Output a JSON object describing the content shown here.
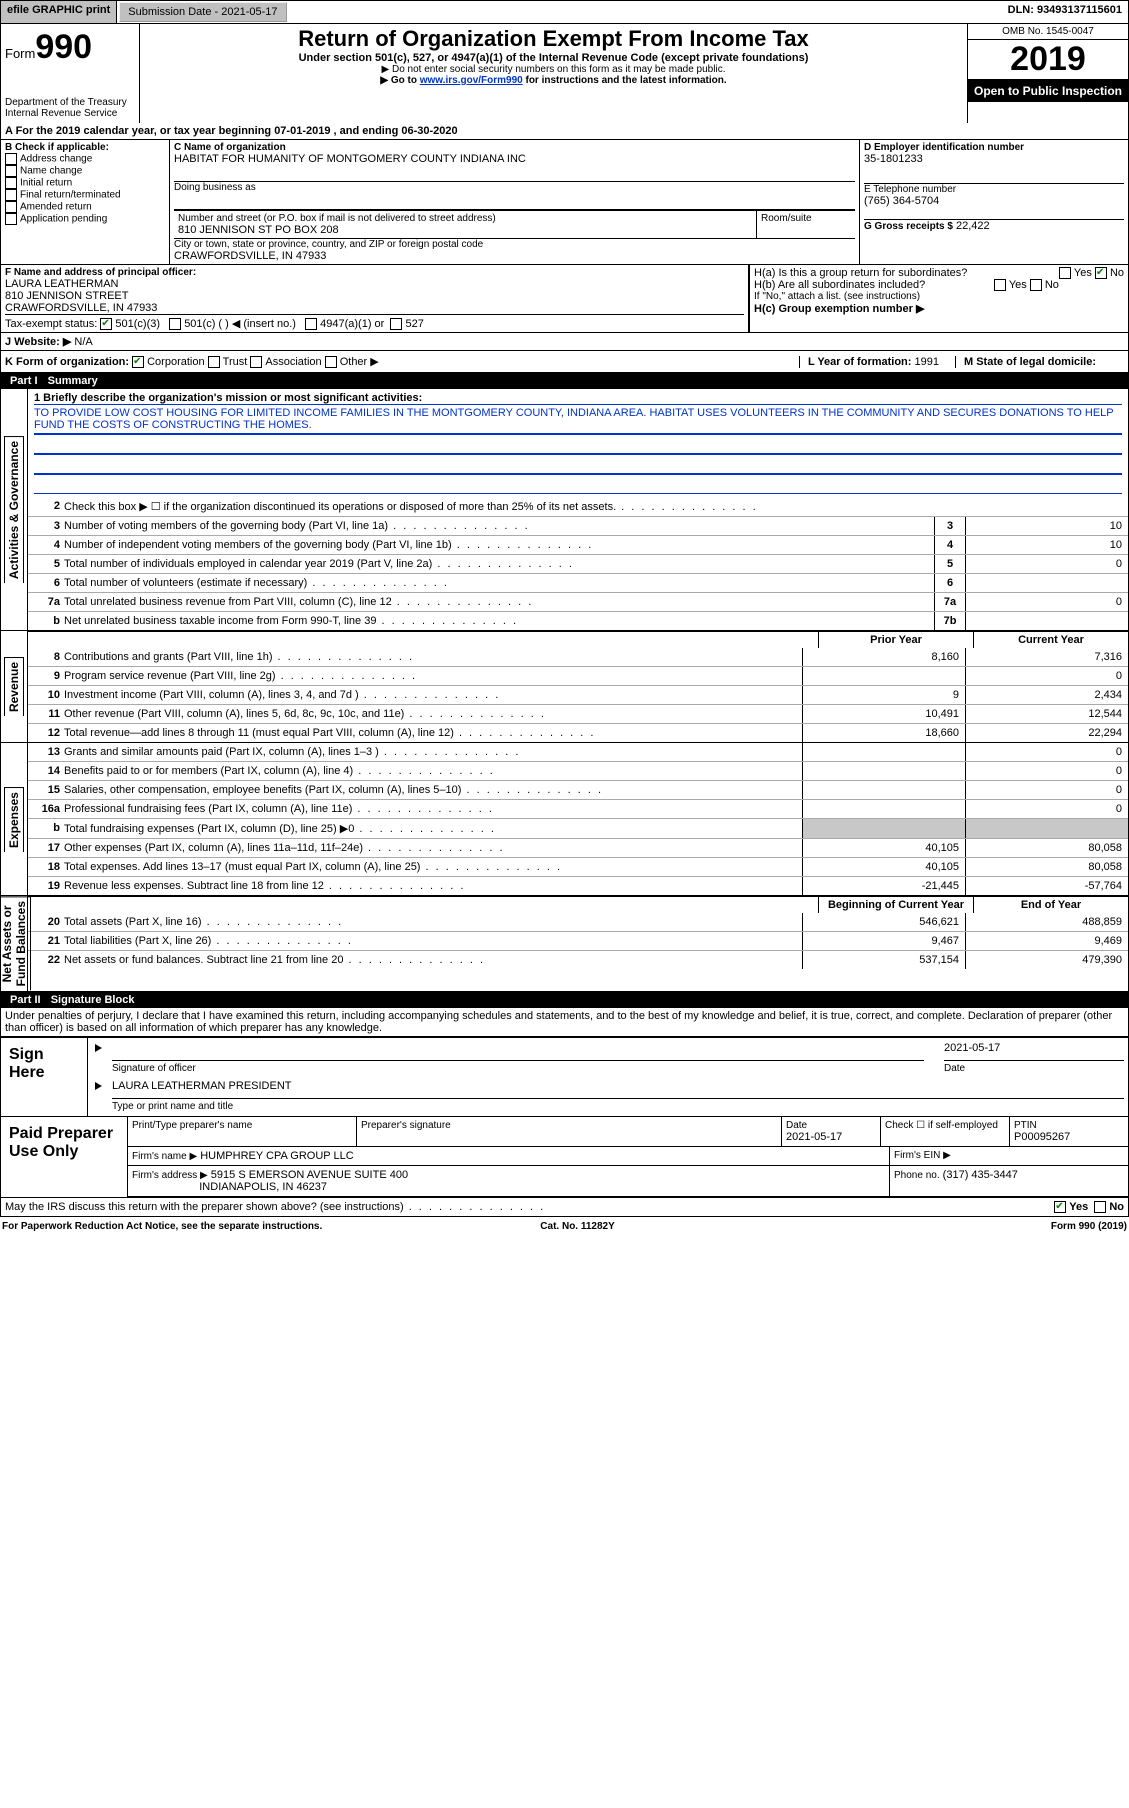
{
  "topbar": {
    "efile": "efile GRAPHIC print",
    "submission": "Submission Date - 2021-05-17",
    "dln": "DLN: 93493137115601"
  },
  "header": {
    "form_prefix": "Form",
    "form_no": "990",
    "dept": "Department of the Treasury\nInternal Revenue Service",
    "title": "Return of Organization Exempt From Income Tax",
    "sub1": "Under section 501(c), 527, or 4947(a)(1) of the Internal Revenue Code (except private foundations)",
    "sub2": "▶ Do not enter social security numbers on this form as it may be made public.",
    "sub3a": "▶ Go to ",
    "sub3link": "www.irs.gov/Form990",
    "sub3b": " for instructions and the latest information.",
    "omb": "OMB No. 1545-0047",
    "year": "2019",
    "open": "Open to Public Inspection"
  },
  "A": {
    "text": "A For the 2019 calendar year, or tax year beginning 07-01-2019    , and ending 06-30-2020"
  },
  "B": {
    "label": "B Check if applicable:",
    "items": [
      "Address change",
      "Name change",
      "Initial return",
      "Final return/terminated",
      "Amended return",
      "Application pending"
    ]
  },
  "C": {
    "label": "C Name of organization",
    "name": "HABITAT FOR HUMANITY OF MONTGOMERY COUNTY INDIANA INC",
    "dba_label": "Doing business as",
    "addr_label": "Number and street (or P.O. box if mail is not delivered to street address)",
    "room_label": "Room/suite",
    "addr": "810 JENNISON ST PO BOX 208",
    "city_label": "City or town, state or province, country, and ZIP or foreign postal code",
    "city": "CRAWFORDSVILLE, IN  47933"
  },
  "D": {
    "label": "D Employer identification number",
    "val": "35-1801233"
  },
  "E": {
    "label": "E Telephone number",
    "val": "(765) 364-5704"
  },
  "G": {
    "label": "G Gross receipts $",
    "val": "22,422"
  },
  "F": {
    "label": "F  Name and address of principal officer:",
    "name": "LAURA LEATHERMAN",
    "addr": "810 JENNISON STREET",
    "city": "CRAWFORDSVILLE, IN  47933"
  },
  "H": {
    "a": "H(a)  Is this a group return for subordinates?",
    "b": "H(b)  Are all subordinates included?",
    "bnote": "If \"No,\" attach a list. (see instructions)",
    "c": "H(c)  Group exemption number ▶",
    "yes": "Yes",
    "no": "No"
  },
  "I": {
    "label": "Tax-exempt status:",
    "opts": [
      "501(c)(3)",
      "501(c) (  ) ◀ (insert no.)",
      "4947(a)(1) or",
      "527"
    ]
  },
  "J": {
    "label": "J   Website: ▶",
    "val": "N/A"
  },
  "K": {
    "label": "K Form of organization:",
    "opts": [
      "Corporation",
      "Trust",
      "Association",
      "Other ▶"
    ]
  },
  "L": {
    "label": "L Year of formation:",
    "val": "1991"
  },
  "M": {
    "label": "M State of legal domicile:"
  },
  "part1": {
    "label": "Part I",
    "title": "Summary"
  },
  "mission": {
    "q": "1  Briefly describe the organization's mission or most significant activities:",
    "text": "TO PROVIDE LOW COST HOUSING FOR LIMITED INCOME FAMILIES IN THE MONTGOMERY COUNTY, INDIANA AREA. HABITAT USES VOLUNTEERS IN THE COMMUNITY AND SECURES DONATIONS TO HELP FUND THE COSTS OF CONSTRUCTING THE HOMES."
  },
  "gov_lines": [
    {
      "n": "2",
      "d": "Check this box ▶ ☐  if the organization discontinued its operations or disposed of more than 25% of its net assets.",
      "box": "",
      "v": ""
    },
    {
      "n": "3",
      "d": "Number of voting members of the governing body (Part VI, line 1a)",
      "box": "3",
      "v": "10"
    },
    {
      "n": "4",
      "d": "Number of independent voting members of the governing body (Part VI, line 1b)",
      "box": "4",
      "v": "10"
    },
    {
      "n": "5",
      "d": "Total number of individuals employed in calendar year 2019 (Part V, line 2a)",
      "box": "5",
      "v": "0"
    },
    {
      "n": "6",
      "d": "Total number of volunteers (estimate if necessary)",
      "box": "6",
      "v": ""
    },
    {
      "n": "7a",
      "d": "Total unrelated business revenue from Part VIII, column (C), line 12",
      "box": "7a",
      "v": "0"
    },
    {
      "n": "b",
      "d": "Net unrelated business taxable income from Form 990-T, line 39",
      "box": "7b",
      "v": ""
    }
  ],
  "two_header": {
    "py": "Prior Year",
    "cy": "Current Year"
  },
  "rev_lines": [
    {
      "n": "8",
      "d": "Contributions and grants (Part VIII, line 1h)",
      "py": "8,160",
      "cy": "7,316"
    },
    {
      "n": "9",
      "d": "Program service revenue (Part VIII, line 2g)",
      "py": "",
      "cy": "0"
    },
    {
      "n": "10",
      "d": "Investment income (Part VIII, column (A), lines 3, 4, and 7d )",
      "py": "9",
      "cy": "2,434"
    },
    {
      "n": "11",
      "d": "Other revenue (Part VIII, column (A), lines 5, 6d, 8c, 9c, 10c, and 11e)",
      "py": "10,491",
      "cy": "12,544"
    },
    {
      "n": "12",
      "d": "Total revenue—add lines 8 through 11 (must equal Part VIII, column (A), line 12)",
      "py": "18,660",
      "cy": "22,294"
    }
  ],
  "exp_lines": [
    {
      "n": "13",
      "d": "Grants and similar amounts paid (Part IX, column (A), lines 1–3 )",
      "py": "",
      "cy": "0"
    },
    {
      "n": "14",
      "d": "Benefits paid to or for members (Part IX, column (A), line 4)",
      "py": "",
      "cy": "0"
    },
    {
      "n": "15",
      "d": "Salaries, other compensation, employee benefits (Part IX, column (A), lines 5–10)",
      "py": "",
      "cy": "0"
    },
    {
      "n": "16a",
      "d": "Professional fundraising fees (Part IX, column (A), line 11e)",
      "py": "",
      "cy": "0"
    },
    {
      "n": "b",
      "d": "Total fundraising expenses (Part IX, column (D), line 25) ▶0",
      "py": "shade",
      "cy": "shade"
    },
    {
      "n": "17",
      "d": "Other expenses (Part IX, column (A), lines 11a–11d, 11f–24e)",
      "py": "40,105",
      "cy": "80,058"
    },
    {
      "n": "18",
      "d": "Total expenses. Add lines 13–17 (must equal Part IX, column (A), line 25)",
      "py": "40,105",
      "cy": "80,058"
    },
    {
      "n": "19",
      "d": "Revenue less expenses. Subtract line 18 from line 12",
      "py": "-21,445",
      "cy": "-57,764"
    }
  ],
  "na_header": {
    "b": "Beginning of Current Year",
    "e": "End of Year"
  },
  "na_lines": [
    {
      "n": "20",
      "d": "Total assets (Part X, line 16)",
      "py": "546,621",
      "cy": "488,859"
    },
    {
      "n": "21",
      "d": "Total liabilities (Part X, line 26)",
      "py": "9,467",
      "cy": "9,469"
    },
    {
      "n": "22",
      "d": "Net assets or fund balances. Subtract line 21 from line 20",
      "py": "537,154",
      "cy": "479,390"
    }
  ],
  "sides": {
    "gov": "Activities & Governance",
    "rev": "Revenue",
    "exp": "Expenses",
    "na": "Net Assets or\nFund Balances"
  },
  "part2": {
    "label": "Part II",
    "title": "Signature Block"
  },
  "decl": "Under penalties of perjury, I declare that I have examined this return, including accompanying schedules and statements, and to the best of my knowledge and belief, it is true, correct, and complete. Declaration of preparer (other than officer) is based on all information of which preparer has any knowledge.",
  "sign": {
    "here": "Sign Here",
    "sig_label": "Signature of officer",
    "date_label": "Date",
    "date": "2021-05-17",
    "name": "LAURA LEATHERMAN  PRESIDENT",
    "name_label": "Type or print name and title"
  },
  "paid": {
    "here": "Paid Preparer Use Only",
    "h": [
      "Print/Type preparer's name",
      "Preparer's signature",
      "Date",
      "",
      "PTIN"
    ],
    "date": "2021-05-17",
    "check": "Check ☐ if self-employed",
    "ptin": "P00095267",
    "firm_label": "Firm's name   ▶",
    "firm": "HUMPHREY CPA GROUP LLC",
    "ein_label": "Firm's EIN ▶",
    "addr_label": "Firm's address ▶",
    "addr": "5915 S EMERSON AVENUE SUITE 400",
    "city": "INDIANAPOLIS, IN  46237",
    "phone_label": "Phone no.",
    "phone": "(317) 435-3447"
  },
  "discuss": {
    "q": "May the IRS discuss this return with the preparer shown above? (see instructions)",
    "yes": "Yes",
    "no": "No"
  },
  "footer": {
    "l": "For Paperwork Reduction Act Notice, see the separate instructions.",
    "m": "Cat. No. 11282Y",
    "r": "Form 990 (2019)"
  },
  "colors": {
    "link": "#0033cc",
    "shade": "#c8c8c8",
    "black": "#000000",
    "green_check": "#008000"
  }
}
